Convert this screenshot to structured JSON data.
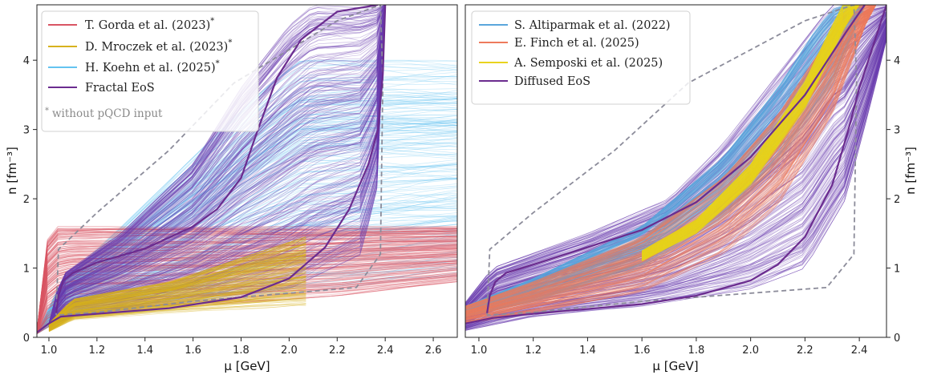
{
  "colors": {
    "gorda": "#d95564",
    "mroczek": "#d7b21e",
    "koehn": "#63c3f0",
    "fractal": "#6b2c8f",
    "altiparmak": "#5aa6dc",
    "finch": "#ee7a5c",
    "semposki": "#e9d31e",
    "diffused": "#6b2c8f",
    "band": "#6a3bb0",
    "hull": "#8c8c9a"
  },
  "chart_data": [
    {
      "id": "left",
      "type": "line",
      "xlabel": "μ [GeV]",
      "ylabel": "n [fm⁻³]",
      "xlim": [
        0.95,
        2.7
      ],
      "ylim": [
        0,
        4.8
      ],
      "xticks": [
        1.0,
        1.2,
        1.4,
        1.6,
        1.8,
        2.0,
        2.2,
        2.4,
        2.6
      ],
      "yticks": [
        0,
        1,
        2,
        3,
        4
      ],
      "y_axis_side": "left",
      "legend_position": "top-left",
      "legend": [
        {
          "label": "T. Gorda et al. (2023)",
          "sup": "*",
          "color_key": "gorda"
        },
        {
          "label": "D. Mroczek et al. (2023)",
          "sup": "*",
          "color_key": "mroczek"
        },
        {
          "label": "H. Koehn et al. (2025)",
          "sup": "*",
          "color_key": "koehn"
        },
        {
          "label": "Fractal EoS",
          "sup": "",
          "color_key": "fractal"
        }
      ],
      "annotation": {
        "star": "*",
        "text": "without pQCD input"
      },
      "bands": [
        {
          "name": "H. Koehn et al. (2025)",
          "color_key": "koehn",
          "mu_start": 0.95,
          "mu_end": 2.7,
          "n_lower": [
            [
              0.95,
              0.05
            ],
            [
              1.1,
              0.35
            ],
            [
              1.6,
              0.5
            ],
            [
              2.2,
              0.7
            ],
            [
              2.7,
              0.9
            ]
          ],
          "n_upper": [
            [
              0.95,
              0.05
            ],
            [
              1.05,
              0.8
            ],
            [
              1.3,
              1.6
            ],
            [
              1.6,
              2.6
            ],
            [
              1.9,
              3.6
            ],
            [
              2.05,
              4.0
            ],
            [
              2.7,
              4.0
            ]
          ]
        },
        {
          "name": "T. Gorda et al. (2023)",
          "color_key": "gorda",
          "mu_start": 0.95,
          "mu_end": 2.7,
          "n_lower": [
            [
              0.95,
              0.05
            ],
            [
              1.1,
              0.35
            ],
            [
              1.6,
              0.45
            ],
            [
              2.2,
              0.6
            ],
            [
              2.7,
              0.8
            ]
          ],
          "n_upper": [
            [
              0.95,
              0.1
            ],
            [
              1.0,
              1.6
            ],
            [
              2.7,
              1.6
            ]
          ]
        },
        {
          "name": "Fractal EoS",
          "color_key": "band",
          "mu_start": 1.0,
          "mu_end": 2.4,
          "n_lower": [
            [
              1.0,
              0.15
            ],
            [
              1.1,
              0.3
            ],
            [
              1.5,
              0.45
            ],
            [
              2.0,
              0.7
            ],
            [
              2.3,
              1.2
            ],
            [
              2.39,
              2.5
            ],
            [
              2.4,
              4.8
            ]
          ],
          "n_upper": [
            [
              1.0,
              0.2
            ],
            [
              1.05,
              0.9
            ],
            [
              1.3,
              1.5
            ],
            [
              1.6,
              2.5
            ],
            [
              1.8,
              3.6
            ],
            [
              2.0,
              4.5
            ],
            [
              2.1,
              4.8
            ]
          ]
        },
        {
          "name": "D. Mroczek et al. (2023)",
          "color_key": "mroczek",
          "mu_start": 1.0,
          "mu_end": 2.07,
          "n_lower": [
            [
              1.0,
              0.08
            ],
            [
              1.1,
              0.25
            ],
            [
              1.5,
              0.35
            ],
            [
              2.07,
              0.45
            ]
          ],
          "n_upper": [
            [
              1.0,
              0.2
            ],
            [
              1.1,
              0.55
            ],
            [
              1.5,
              0.8
            ],
            [
              2.07,
              1.45
            ]
          ]
        }
      ],
      "lines": [
        {
          "name": "Fractal EoS upper",
          "color_key": "fractal",
          "points": [
            [
              1.03,
              0.35
            ],
            [
              1.04,
              0.6
            ],
            [
              1.06,
              0.82
            ],
            [
              1.1,
              0.93
            ],
            [
              1.2,
              1.08
            ],
            [
              1.4,
              1.28
            ],
            [
              1.6,
              1.6
            ],
            [
              1.7,
              1.85
            ],
            [
              1.8,
              2.3
            ],
            [
              1.87,
              3.0
            ],
            [
              1.95,
              3.75
            ],
            [
              2.05,
              4.3
            ],
            [
              2.2,
              4.7
            ],
            [
              2.37,
              4.8
            ]
          ]
        },
        {
          "name": "Fractal EoS lower",
          "color_key": "fractal",
          "points": [
            [
              0.95,
              0.07
            ],
            [
              1.0,
              0.2
            ],
            [
              1.05,
              0.3
            ],
            [
              1.2,
              0.34
            ],
            [
              1.5,
              0.42
            ],
            [
              1.8,
              0.58
            ],
            [
              2.0,
              0.85
            ],
            [
              2.15,
              1.3
            ],
            [
              2.25,
              1.85
            ],
            [
              2.33,
              2.5
            ],
            [
              2.37,
              3.0
            ],
            [
              2.39,
              3.8
            ],
            [
              2.4,
              4.8
            ]
          ]
        }
      ],
      "hull": [
        [
          1.03,
          0.32
        ],
        [
          1.04,
          1.27
        ],
        [
          1.2,
          1.8
        ],
        [
          1.5,
          2.7
        ],
        [
          1.77,
          3.67
        ],
        [
          2.2,
          4.57
        ],
        [
          2.38,
          4.8
        ],
        [
          2.39,
          3.7
        ],
        [
          2.38,
          1.2
        ],
        [
          2.28,
          0.72
        ],
        [
          1.6,
          0.52
        ],
        [
          1.2,
          0.36
        ],
        [
          1.03,
          0.32
        ]
      ]
    },
    {
      "id": "right",
      "type": "line",
      "xlabel": "μ [GeV]",
      "ylabel": "n [fm⁻³]",
      "xlim": [
        0.95,
        2.5
      ],
      "ylim": [
        0,
        4.8
      ],
      "xticks": [
        1.0,
        1.2,
        1.4,
        1.6,
        1.8,
        2.0,
        2.2,
        2.4
      ],
      "yticks": [
        0,
        1,
        2,
        3,
        4
      ],
      "y_axis_side": "right",
      "legend_position": "top-left",
      "legend": [
        {
          "label": "S. Altiparmak et al. (2022)",
          "sup": "",
          "color_key": "altiparmak"
        },
        {
          "label": "E. Finch et al. (2025)",
          "sup": "",
          "color_key": "finch"
        },
        {
          "label": "A. Semposki et al. (2025)",
          "sup": "",
          "color_key": "semposki"
        },
        {
          "label": "Diffused EoS",
          "sup": "",
          "color_key": "diffused"
        }
      ],
      "bands": [
        {
          "name": "Diffused EoS",
          "color_key": "band",
          "mu_start": 0.95,
          "mu_end": 2.5,
          "n_lower": [
            [
              0.95,
              0.1
            ],
            [
              1.2,
              0.3
            ],
            [
              1.6,
              0.45
            ],
            [
              2.0,
              0.7
            ],
            [
              2.2,
              1.0
            ],
            [
              2.35,
              2.0
            ],
            [
              2.45,
              3.5
            ],
            [
              2.5,
              4.3
            ]
          ],
          "n_upper": [
            [
              0.95,
              0.5
            ],
            [
              1.05,
              1.0
            ],
            [
              1.4,
              1.5
            ],
            [
              1.7,
              2.0
            ],
            [
              1.9,
              2.8
            ],
            [
              2.1,
              3.8
            ],
            [
              2.3,
              4.8
            ],
            [
              2.5,
              4.8
            ]
          ]
        },
        {
          "name": "S. Altiparmak et al. (2022)",
          "color_key": "altiparmak",
          "mu_start": 0.95,
          "mu_end": 2.5,
          "n_lower": [
            [
              0.95,
              0.3
            ],
            [
              1.2,
              0.5
            ],
            [
              1.6,
              1.0
            ],
            [
              1.9,
              1.7
            ],
            [
              2.1,
              2.5
            ],
            [
              2.3,
              3.6
            ],
            [
              2.42,
              4.8
            ],
            [
              2.5,
              4.8
            ]
          ],
          "n_upper": [
            [
              0.95,
              0.45
            ],
            [
              1.2,
              0.85
            ],
            [
              1.6,
              1.6
            ],
            [
              1.9,
              2.6
            ],
            [
              2.1,
              3.6
            ],
            [
              2.25,
              4.5
            ],
            [
              2.32,
              4.8
            ],
            [
              2.5,
              4.8
            ]
          ]
        },
        {
          "name": "E. Finch et al. (2025)",
          "color_key": "finch",
          "mu_start": 0.95,
          "mu_end": 2.5,
          "n_lower": [
            [
              0.95,
              0.2
            ],
            [
              1.2,
              0.35
            ],
            [
              1.6,
              0.65
            ],
            [
              1.9,
              1.2
            ],
            [
              2.1,
              1.9
            ],
            [
              2.3,
              3.2
            ],
            [
              2.45,
              4.8
            ],
            [
              2.5,
              4.8
            ]
          ],
          "n_upper": [
            [
              0.95,
              0.45
            ],
            [
              1.2,
              0.8
            ],
            [
              1.6,
              1.45
            ],
            [
              1.9,
              2.3
            ],
            [
              2.1,
              3.2
            ],
            [
              2.3,
              4.4
            ],
            [
              2.36,
              4.8
            ],
            [
              2.5,
              4.8
            ]
          ]
        },
        {
          "name": "A. Semposki et al. (2025)",
          "color_key": "semposki",
          "mu_start": 1.6,
          "mu_end": 2.4,
          "n_lower": [
            [
              1.6,
              1.1
            ],
            [
              1.8,
              1.5
            ],
            [
              2.0,
              2.2
            ],
            [
              2.2,
              3.3
            ],
            [
              2.35,
              4.5
            ],
            [
              2.4,
              4.8
            ]
          ],
          "n_upper": [
            [
              1.6,
              1.25
            ],
            [
              1.8,
              1.7
            ],
            [
              2.0,
              2.5
            ],
            [
              2.2,
              3.7
            ],
            [
              2.3,
              4.5
            ],
            [
              2.34,
              4.8
            ]
          ]
        }
      ],
      "lines": [
        {
          "name": "Diffused EoS upper",
          "color_key": "diffused",
          "points": [
            [
              1.03,
              0.35
            ],
            [
              1.04,
              0.6
            ],
            [
              1.06,
              0.8
            ],
            [
              1.1,
              0.93
            ],
            [
              1.2,
              1.05
            ],
            [
              1.4,
              1.3
            ],
            [
              1.6,
              1.55
            ],
            [
              1.8,
              1.95
            ],
            [
              2.0,
              2.6
            ],
            [
              2.2,
              3.5
            ],
            [
              2.35,
              4.4
            ],
            [
              2.42,
              4.8
            ]
          ]
        },
        {
          "name": "Diffused EoS lower",
          "color_key": "diffused",
          "points": [
            [
              0.95,
              0.2
            ],
            [
              1.05,
              0.28
            ],
            [
              1.2,
              0.34
            ],
            [
              1.6,
              0.48
            ],
            [
              1.8,
              0.6
            ],
            [
              2.0,
              0.82
            ],
            [
              2.1,
              1.05
            ],
            [
              2.2,
              1.45
            ],
            [
              2.3,
              2.2
            ],
            [
              2.36,
              3.0
            ],
            [
              2.4,
              3.6
            ],
            [
              2.45,
              4.2
            ],
            [
              2.5,
              4.8
            ]
          ]
        }
      ],
      "hull": [
        [
          1.03,
          0.32
        ],
        [
          1.04,
          1.27
        ],
        [
          1.2,
          1.8
        ],
        [
          1.5,
          2.7
        ],
        [
          1.77,
          3.67
        ],
        [
          2.2,
          4.57
        ],
        [
          2.38,
          4.8
        ],
        [
          2.39,
          3.7
        ],
        [
          2.38,
          1.2
        ],
        [
          2.28,
          0.72
        ],
        [
          1.6,
          0.52
        ],
        [
          1.2,
          0.36
        ],
        [
          1.03,
          0.32
        ]
      ]
    }
  ]
}
